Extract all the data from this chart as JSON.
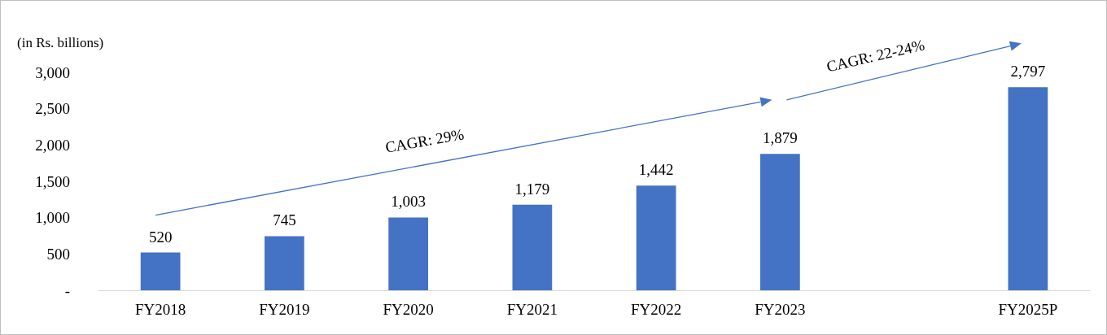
{
  "chart_data": {
    "type": "bar",
    "ylabel": "(in Rs. billions)",
    "categories": [
      "FY2018",
      "FY2019",
      "FY2020",
      "FY2021",
      "FY2022",
      "FY2023",
      null,
      "FY2025P"
    ],
    "values": [
      520,
      745,
      1003,
      1179,
      1442,
      1879,
      null,
      2797
    ],
    "color": "#4472c4",
    "ylim": [
      0,
      3000
    ],
    "yticks": [
      {
        "value": 0,
        "label": "-"
      },
      500,
      {
        "value": 1000,
        "label": "1,000"
      },
      {
        "value": 1500,
        "label": "1,500"
      },
      {
        "value": 2000,
        "label": "2,000"
      },
      {
        "value": 2500,
        "label": "2,500"
      },
      {
        "value": 3000,
        "label": "3,000"
      }
    ],
    "value_labels": [
      "520",
      "745",
      "1,003",
      "1,179",
      "1,442",
      "1,879",
      null,
      "2,797"
    ],
    "grid": false,
    "annotations": [
      "CAGR: 29%",
      "CAGR: 22-24%"
    ]
  }
}
